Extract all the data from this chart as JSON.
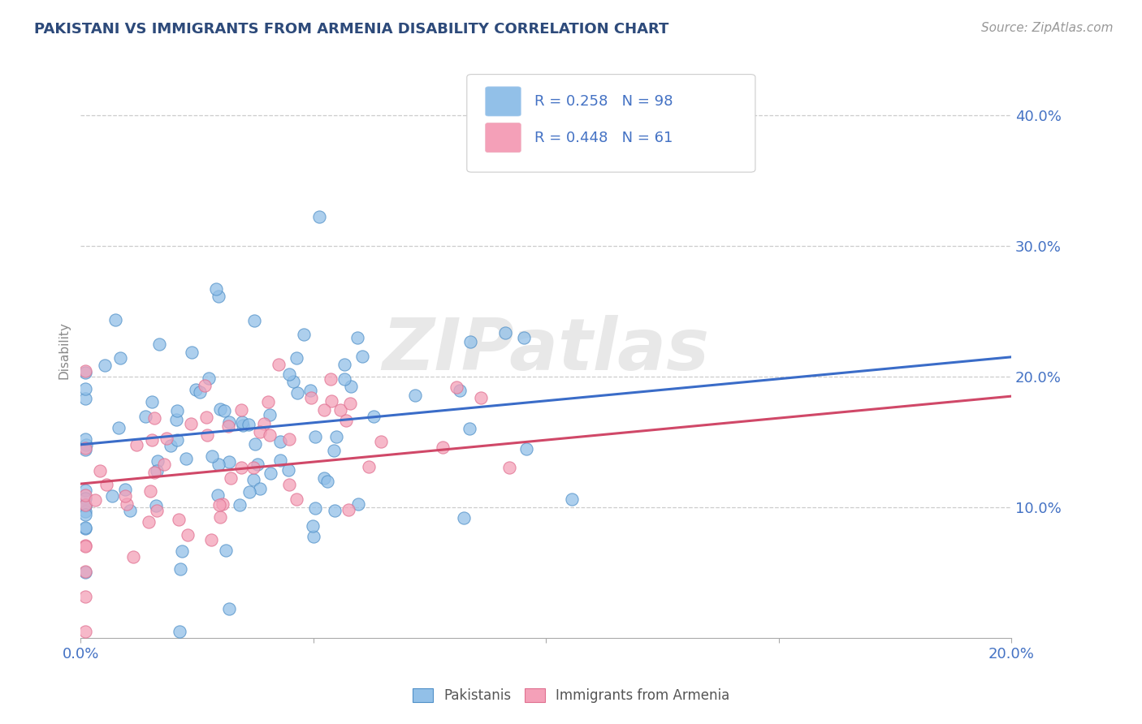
{
  "title": "PAKISTANI VS IMMIGRANTS FROM ARMENIA DISABILITY CORRELATION CHART",
  "source": "Source: ZipAtlas.com",
  "ylabel": "Disability",
  "xlim": [
    0.0,
    0.2
  ],
  "ylim": [
    0.0,
    0.44
  ],
  "yticks": [
    0.1,
    0.2,
    0.3,
    0.4
  ],
  "xticks": [
    0.0,
    0.05,
    0.1,
    0.15,
    0.2
  ],
  "ytick_labels": [
    "10.0%",
    "20.0%",
    "30.0%",
    "40.0%"
  ],
  "xtick_labels_show": [
    "0.0%",
    "20.0%"
  ],
  "legend_text1": "R = 0.258   N = 98",
  "legend_text2": "R = 0.448   N = 61",
  "series1_color": "#92c0e8",
  "series2_color": "#f4a0b8",
  "series1_edge": "#5090c8",
  "series2_edge": "#e07090",
  "trendline1_color": "#3a6cc8",
  "trendline2_color": "#d04868",
  "legend_text_color": "#4472c4",
  "watermark": "ZIPatlas",
  "background_color": "#ffffff",
  "grid_color": "#cccccc",
  "title_color": "#2d4a7a",
  "seed": 12,
  "n1": 98,
  "n2": 61,
  "trendline1_x": [
    0.0,
    0.2
  ],
  "trendline1_y": [
    0.148,
    0.215
  ],
  "trendline2_x": [
    0.0,
    0.2
  ],
  "trendline2_y": [
    0.118,
    0.185
  ]
}
